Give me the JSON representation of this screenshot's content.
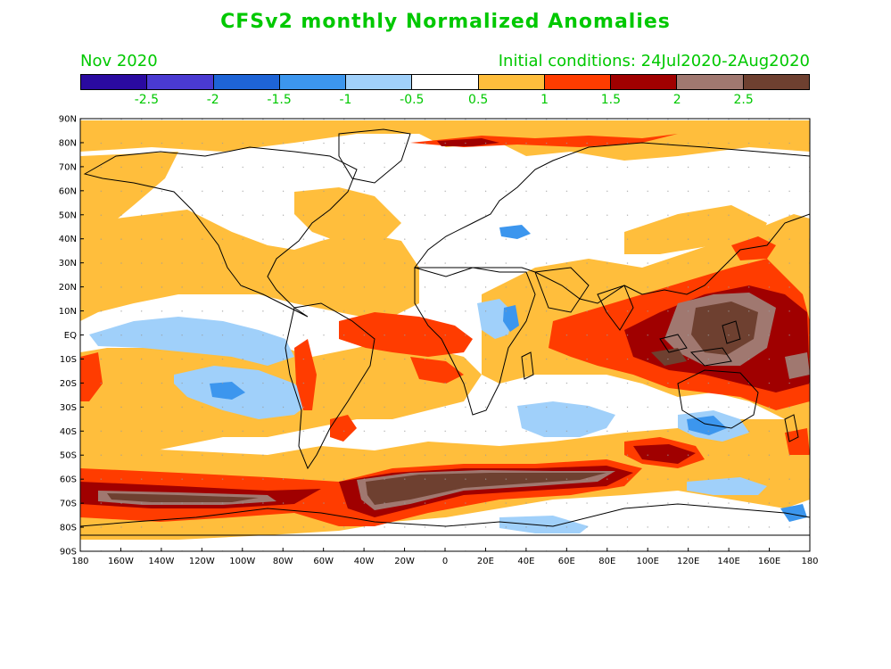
{
  "title": "CFSv2 monthly Normalized Anomalies",
  "valid_month": "Nov 2020",
  "initial_conditions": "Initial conditions: 24Jul2020-2Aug2020",
  "colorbar": {
    "colors": [
      "#2a0aa0",
      "#4a3ad2",
      "#1e64d6",
      "#3c96ee",
      "#a0d0fa",
      "#ffffff",
      "#ffbe3c",
      "#ff3c00",
      "#a00000",
      "#a07870",
      "#6e4030"
    ],
    "labels": [
      "-2.5",
      "-2",
      "-1.5",
      "-1",
      "-0.5",
      "0.5",
      "1",
      "1.5",
      "2",
      "2.5"
    ]
  },
  "lat_labels": [
    "90N",
    "80N",
    "70N",
    "60N",
    "50N",
    "40N",
    "30N",
    "20N",
    "10N",
    "EQ",
    "10S",
    "20S",
    "30S",
    "40S",
    "50S",
    "60S",
    "70S",
    "80S",
    "90S"
  ],
  "lon_labels": [
    "180",
    "160W",
    "140W",
    "120W",
    "100W",
    "80W",
    "60W",
    "40W",
    "20W",
    "0",
    "20E",
    "40E",
    "60E",
    "80E",
    "100E",
    "120E",
    "140E",
    "160E",
    "180"
  ]
}
